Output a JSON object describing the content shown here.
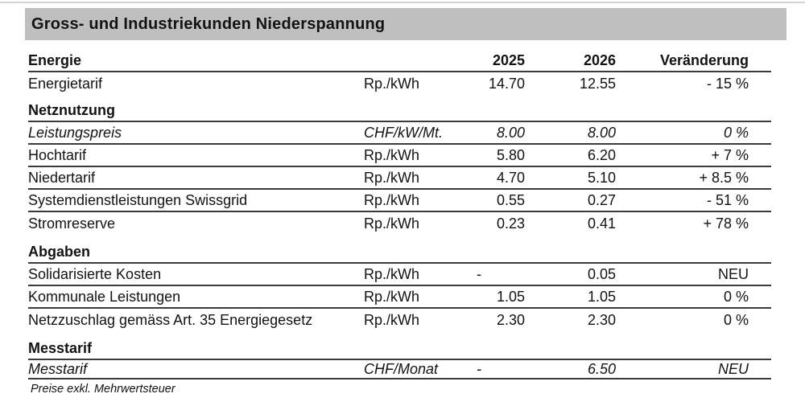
{
  "title": "Gross- und Industriekunden Niederspannung",
  "columns": {
    "col_2025": "2025",
    "col_2026": "2026",
    "col_change": "Veränderung"
  },
  "sections": {
    "energie": {
      "heading": "Energie",
      "rows": [
        {
          "label": "Energietarif",
          "unit": "Rp./kWh",
          "v2025": "14.70",
          "v2026": "12.55",
          "change": "- 15 %"
        }
      ]
    },
    "netznutzung": {
      "heading": "Netznutzung",
      "rows": [
        {
          "label": "Leistungspreis",
          "unit": "CHF/kW/Mt.",
          "v2025": "8.00",
          "v2026": "8.00",
          "change": "0 %"
        },
        {
          "label": "Hochtarif",
          "unit": "Rp./kWh",
          "v2025": "5.80",
          "v2026": "6.20",
          "change": "+ 7 %"
        },
        {
          "label": "Niedertarif",
          "unit": "Rp./kWh",
          "v2025": "4.70",
          "v2026": "5.10",
          "change": "+ 8.5 %"
        },
        {
          "label": "Systemdienstleistungen Swissgrid",
          "unit": "Rp./kWh",
          "v2025": "0.55",
          "v2026": "0.27",
          "change": "- 51 %"
        },
        {
          "label": "Stromreserve",
          "unit": "Rp./kWh",
          "v2025": "0.23",
          "v2026": "0.41",
          "change": "+ 78 %"
        }
      ]
    },
    "abgaben": {
      "heading": "Abgaben",
      "rows": [
        {
          "label": "Solidarisierte Kosten",
          "unit": "Rp./kWh",
          "v2025": "-",
          "v2026": "0.05",
          "change": "NEU"
        },
        {
          "label": "Kommunale Leistungen",
          "unit": "Rp./kWh",
          "v2025": "1.05",
          "v2026": "1.05",
          "change": "0 %"
        },
        {
          "label": "Netzzuschlag gemäss Art. 35 Energiegesetz",
          "unit": "Rp./kWh",
          "v2025": "2.30",
          "v2026": "2.30",
          "change": "0 %"
        }
      ]
    },
    "messtarif": {
      "heading": "Messtarif",
      "rows": [
        {
          "label": "Messtarif",
          "unit": "CHF/Monat",
          "v2025": "-",
          "v2026": "6.50",
          "change": "NEU"
        }
      ]
    }
  },
  "footnote": "Preise exkl. Mehrwertsteuer",
  "colors": {
    "title_bar_bg": "#bfbfbf",
    "rule": "#3a3a3a",
    "top_hairline": "#d4d4d4"
  }
}
